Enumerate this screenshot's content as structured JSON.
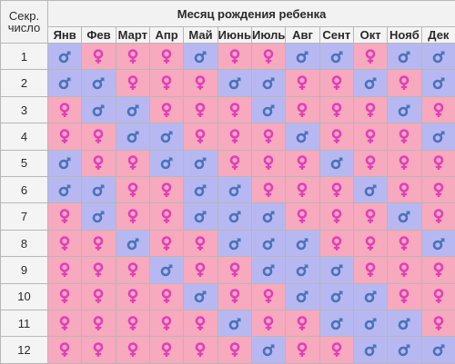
{
  "header": {
    "corner_label_line1": "Секр.",
    "corner_label_line2": "число",
    "title": "Месяц рождения ребенка"
  },
  "months": [
    "Янв",
    "Фев",
    "Март",
    "Апр",
    "Май",
    "Июнь",
    "Июль",
    "Авг",
    "Сент",
    "Окт",
    "Нояб",
    "Дек"
  ],
  "rows": [
    {
      "label": "1",
      "cells": [
        "b",
        "g",
        "g",
        "g",
        "b",
        "g",
        "g",
        "b",
        "b",
        "g",
        "b",
        "b"
      ]
    },
    {
      "label": "2",
      "cells": [
        "b",
        "b",
        "g",
        "g",
        "g",
        "b",
        "b",
        "g",
        "g",
        "b",
        "g",
        "b"
      ]
    },
    {
      "label": "3",
      "cells": [
        "g",
        "b",
        "b",
        "g",
        "g",
        "g",
        "b",
        "g",
        "g",
        "g",
        "b",
        "g"
      ]
    },
    {
      "label": "4",
      "cells": [
        "g",
        "g",
        "b",
        "b",
        "g",
        "g",
        "g",
        "b",
        "g",
        "g",
        "g",
        "b"
      ]
    },
    {
      "label": "5",
      "cells": [
        "b",
        "g",
        "g",
        "b",
        "b",
        "g",
        "g",
        "g",
        "b",
        "g",
        "g",
        "g"
      ]
    },
    {
      "label": "6",
      "cells": [
        "b",
        "b",
        "g",
        "g",
        "b",
        "b",
        "g",
        "g",
        "g",
        "b",
        "g",
        "g"
      ]
    },
    {
      "label": "7",
      "cells": [
        "g",
        "b",
        "g",
        "g",
        "b",
        "b",
        "b",
        "g",
        "g",
        "g",
        "b",
        "g"
      ]
    },
    {
      "label": "8",
      "cells": [
        "g",
        "g",
        "b",
        "g",
        "g",
        "b",
        "b",
        "b",
        "g",
        "g",
        "g",
        "b"
      ]
    },
    {
      "label": "9",
      "cells": [
        "g",
        "g",
        "g",
        "b",
        "g",
        "g",
        "b",
        "b",
        "b",
        "g",
        "g",
        "g"
      ]
    },
    {
      "label": "10",
      "cells": [
        "g",
        "g",
        "g",
        "g",
        "b",
        "g",
        "g",
        "b",
        "b",
        "b",
        "g",
        "g"
      ]
    },
    {
      "label": "11",
      "cells": [
        "g",
        "g",
        "g",
        "g",
        "g",
        "b",
        "g",
        "g",
        "b",
        "b",
        "b",
        "g"
      ]
    },
    {
      "label": "12",
      "cells": [
        "g",
        "g",
        "g",
        "g",
        "g",
        "g",
        "b",
        "g",
        "g",
        "b",
        "b",
        "b"
      ]
    }
  ],
  "legend_colors": {
    "boy_cell": "#b7b8f2",
    "girl_cell": "#f7a9be",
    "boy_icon": "#4a73b8",
    "girl_icon": "#e040b8"
  },
  "icons": {
    "b": "male-symbol-icon",
    "g": "female-symbol-icon"
  }
}
